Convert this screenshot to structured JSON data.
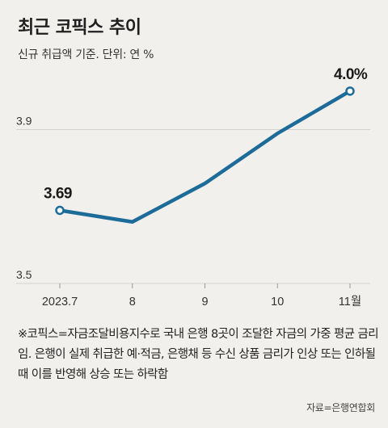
{
  "header": {
    "title": "최근 코픽스 추이",
    "subtitle": "신규 취급액 기준. 단위: 연 %"
  },
  "footer": {
    "note": "※코픽스=자금조달비용지수로 국내 은행 8곳이 조달한 자금의 가중 평균 금리임. 은행이 실제 취급한 예·적금, 은행채 등 수신 상품 금리가 인상 또는 인하될 때 이를 반영해 상승 또는 하락함",
    "source": "자료=은행연합회"
  },
  "colors": {
    "line": "#1d6b99",
    "grid": "#d2d2d2",
    "background": "#f1f0ec"
  },
  "chart_data": {
    "type": "line",
    "categories": [
      "2023.7",
      "8",
      "9",
      "10",
      "11월"
    ],
    "series": [
      {
        "values": [
          3.69,
          3.66,
          3.76,
          3.89,
          4.0
        ]
      }
    ],
    "ylim": [
      3.5,
      4.05
    ],
    "yticks": [
      3.5,
      3.9
    ],
    "ytick_labels": [
      "3.5",
      "3.9"
    ],
    "data_labels": [
      {
        "index": 0,
        "text": "3.69"
      },
      {
        "index": 4,
        "text": "4.0%"
      }
    ],
    "grid": true,
    "legend": "none"
  }
}
